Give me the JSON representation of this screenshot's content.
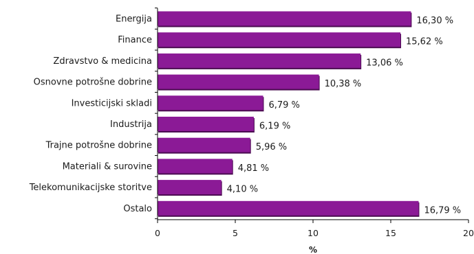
{
  "chart_data": {
    "type": "bar",
    "orientation": "horizontal",
    "categories": [
      "Energija",
      "Finance",
      "Zdravstvo & medicina",
      "Osnovne potrošne dobrine",
      "Investicijski skladi",
      "Industrija",
      "Trajne potrošne dobrine",
      "Materiali & surovine",
      "Telekomunikacijske storitve",
      "Ostalo"
    ],
    "values": [
      16.3,
      15.62,
      13.06,
      10.38,
      6.79,
      6.19,
      5.96,
      4.81,
      4.1,
      16.79
    ],
    "value_labels": [
      "16,30 %",
      "15,62 %",
      "13,06 %",
      "10,38 %",
      "6,79 %",
      "6,19 %",
      "5,96 %",
      "4,81 %",
      "4,10 %",
      "16,79 %"
    ],
    "xticks": [
      0,
      5,
      10,
      15,
      20
    ],
    "xtick_labels": [
      "0",
      "5",
      "10",
      "15",
      "20"
    ],
    "xlim": [
      0,
      20
    ],
    "xlabel": "%",
    "title": "",
    "grid": false,
    "legend": "none",
    "bar_color": "#8B1A96",
    "bar_shadow_color": "#4A0B50"
  }
}
